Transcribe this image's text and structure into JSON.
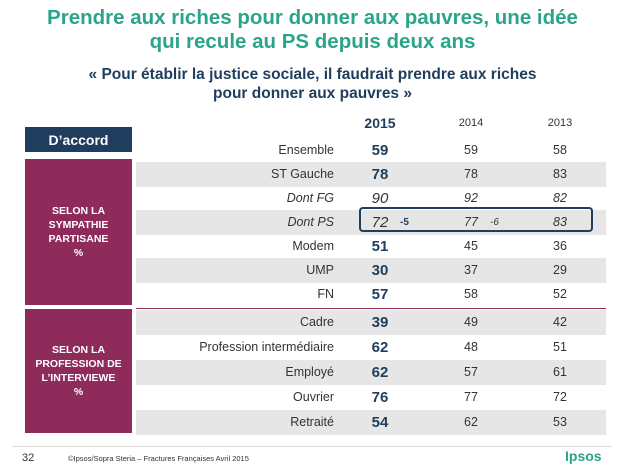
{
  "title": [
    "Prendre aux riches pour donner aux pauvres, une idée",
    "qui recule au PS depuis deux ans"
  ],
  "subtitle": [
    "« Pour établir la justice sociale, il faudrait prendre aux riches",
    "pour donner aux pauvres  »"
  ],
  "headers": {
    "y2015": "2015",
    "y2014": "2014",
    "y2013": "2013"
  },
  "badge": "D’accord",
  "groups": [
    {
      "lines": [
        "SELON LA",
        "SYMPATHIE",
        "PARTISANE",
        "%"
      ]
    },
    {
      "lines": [
        "SELON LA",
        "PROFESSION DE",
        "L’INTERVIEWE",
        "%"
      ]
    }
  ],
  "rows": [
    {
      "label": "Ensemble",
      "v2015": "59",
      "v2014": "59",
      "v2013": "58"
    },
    {
      "label": "ST Gauche",
      "v2015": "78",
      "v2014": "78",
      "v2013": "83"
    },
    {
      "label": "Dont FG",
      "v2015": "90",
      "v2014": "92",
      "v2013": "82"
    },
    {
      "label": "Dont PS",
      "v2015": "72",
      "v2014": "77",
      "v2013": "83",
      "d2015": "-5",
      "d2014": "-6"
    },
    {
      "label": "Modem",
      "v2015": "51",
      "v2014": "45",
      "v2013": "36"
    },
    {
      "label": "UMP",
      "v2015": "30",
      "v2014": "37",
      "v2013": "29"
    },
    {
      "label": "FN",
      "v2015": "57",
      "v2014": "58",
      "v2013": "52"
    },
    {
      "label": "Cadre",
      "v2015": "39",
      "v2014": "49",
      "v2013": "42"
    },
    {
      "label": "Profession intermédiaire",
      "v2015": "62",
      "v2014": "48",
      "v2013": "51"
    },
    {
      "label": "Employé",
      "v2015": "62",
      "v2014": "57",
      "v2013": "61"
    },
    {
      "label": "Ouvrier",
      "v2015": "76",
      "v2014": "77",
      "v2013": "72"
    },
    {
      "label": "Retraité",
      "v2015": "54",
      "v2014": "62",
      "v2013": "53"
    }
  ],
  "footer": {
    "page": "32",
    "copyright": "©Ipsos/Sopra Steria –  Fractures Françaises  Avril 2015",
    "logo": "Ipsos"
  },
  "colors": {
    "accent": "#2aa58a",
    "navy": "#1f3d5c",
    "plum": "#8e2b5b",
    "shade": "#e6e6e6"
  }
}
